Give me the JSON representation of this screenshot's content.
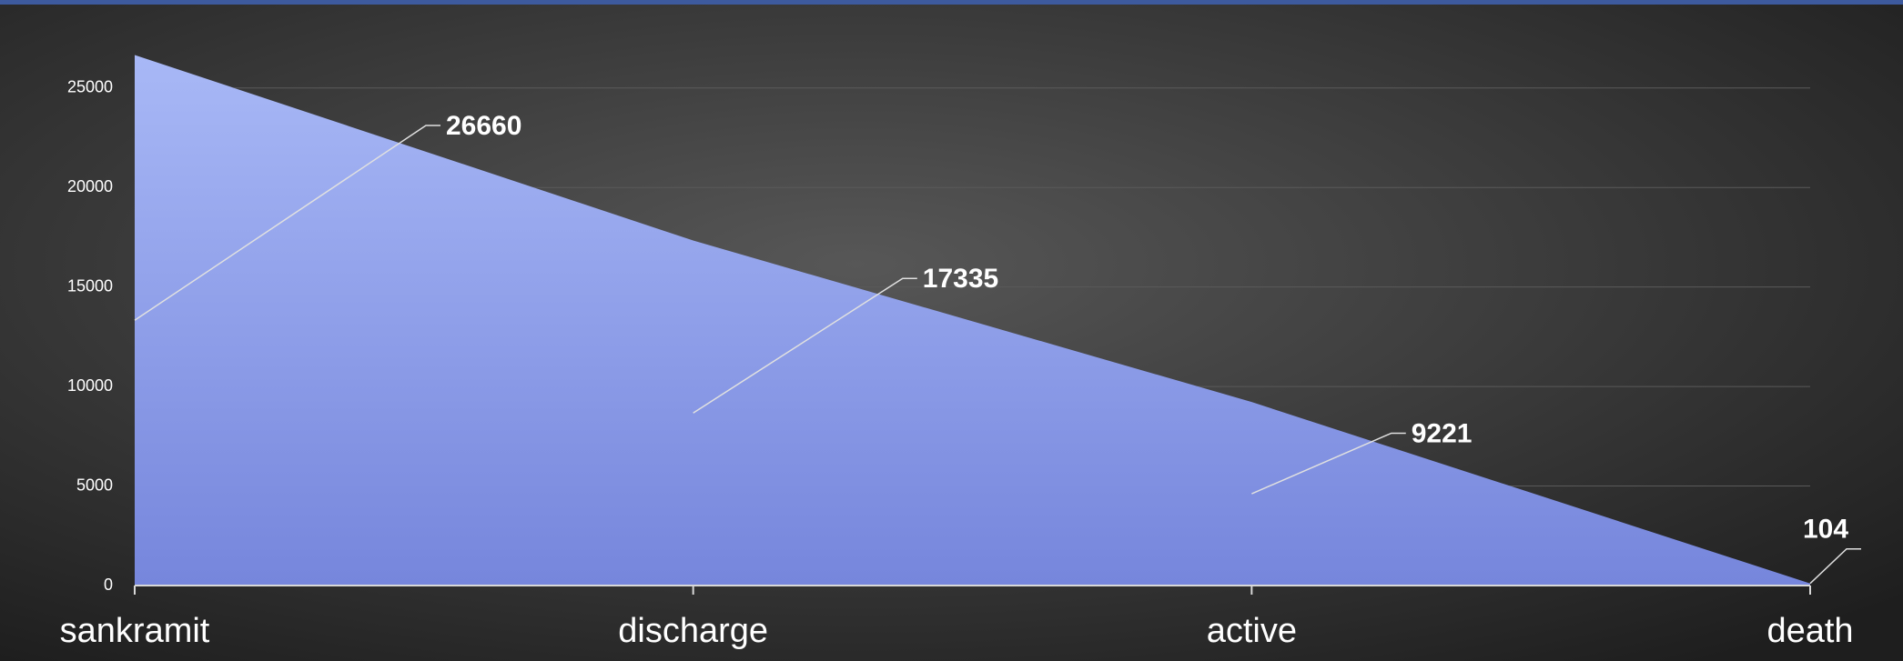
{
  "chart_data": {
    "type": "area",
    "categories": [
      "sankramit",
      "discharge",
      "active",
      "death"
    ],
    "values": [
      26660,
      17335,
      9221,
      104
    ],
    "color": "#8a9cec",
    "ylim": [
      0,
      27000
    ],
    "yticks": [
      0,
      5000,
      10000,
      15000,
      20000,
      25000
    ],
    "grid": true
  }
}
